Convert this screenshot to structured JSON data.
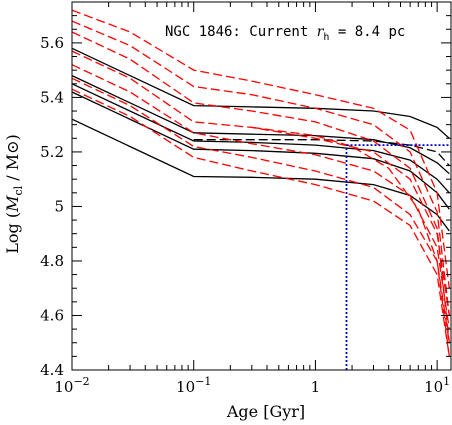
{
  "chart_data": {
    "type": "line",
    "title": "",
    "annotation": {
      "prefix": "NGC 1846: Current ",
      "symbol": "r",
      "subscript": "h",
      "suffix": " = 8.4 pc"
    },
    "xlabel": "Age [Gyr]",
    "ylabel": {
      "prefix": "Log (",
      "symbol": "M",
      "subscript": "cl",
      "suffix": " / M⊙)"
    },
    "xscale": "log",
    "xlim": [
      0.01,
      13
    ],
    "ylim": [
      4.4,
      5.75
    ],
    "x_ticks": [
      {
        "value": 0.01,
        "base": "10",
        "exp": "−2"
      },
      {
        "value": 0.1,
        "base": "10",
        "exp": "−1"
      },
      {
        "value": 1,
        "base": "1",
        "exp": ""
      },
      {
        "value": 10,
        "base": "10",
        "exp": "1"
      }
    ],
    "y_ticks": [
      {
        "value": 4.4,
        "label": "4.4"
      },
      {
        "value": 4.6,
        "label": "4.6"
      },
      {
        "value": 4.8,
        "label": "4.8"
      },
      {
        "value": 5.0,
        "label": "5"
      },
      {
        "value": 5.2,
        "label": "5.2"
      },
      {
        "value": 5.4,
        "label": "5.4"
      },
      {
        "value": 5.6,
        "label": "5.6"
      }
    ],
    "series": [
      {
        "style": "solid",
        "color": "#000000",
        "x": [
          0.01,
          0.1,
          0.3,
          1,
          3,
          6,
          10,
          12.6
        ],
        "y": [
          5.58,
          5.37,
          5.365,
          5.36,
          5.35,
          5.33,
          5.29,
          5.25
        ]
      },
      {
        "style": "solid",
        "color": "#000000",
        "x": [
          0.01,
          0.1,
          0.3,
          1,
          3,
          6,
          10,
          12.6
        ],
        "y": [
          5.48,
          5.27,
          5.265,
          5.26,
          5.245,
          5.215,
          5.16,
          5.12
        ]
      },
      {
        "style": "solid",
        "color": "#000000",
        "x": [
          0.01,
          0.1,
          0.3,
          1,
          3,
          6,
          10,
          12.6
        ],
        "y": [
          5.45,
          5.24,
          5.235,
          5.225,
          5.205,
          5.17,
          5.1,
          5.05
        ]
      },
      {
        "style": "solid",
        "color": "#000000",
        "x": [
          0.01,
          0.1,
          0.3,
          1,
          3,
          6,
          10,
          12.6
        ],
        "y": [
          5.42,
          5.21,
          5.205,
          5.195,
          5.175,
          5.13,
          5.05,
          4.99
        ]
      },
      {
        "style": "solid",
        "color": "#000000",
        "x": [
          0.01,
          0.1,
          0.3,
          1,
          3,
          6,
          10,
          12.6
        ],
        "y": [
          5.32,
          5.11,
          5.107,
          5.1,
          5.08,
          5.04,
          4.97,
          4.91
        ]
      },
      {
        "style": "dashed",
        "color": "#000000",
        "x": [
          0.1,
          0.3,
          1,
          3,
          6,
          10,
          12.6
        ],
        "y": [
          5.245,
          5.245,
          5.245,
          5.24,
          5.225,
          5.2,
          5.15
        ]
      },
      {
        "style": "dashed",
        "color": "#ff0000",
        "x": [
          0.01,
          0.03,
          0.1,
          0.3,
          1,
          3,
          6,
          10,
          12.6
        ],
        "y": [
          5.72,
          5.64,
          5.5,
          5.46,
          5.41,
          5.36,
          5.28,
          5.05,
          4.7
        ]
      },
      {
        "style": "dashed",
        "color": "#ff0000",
        "x": [
          0.01,
          0.03,
          0.1,
          0.3,
          1,
          3,
          6,
          10,
          12.6
        ],
        "y": [
          5.68,
          5.59,
          5.44,
          5.41,
          5.36,
          5.3,
          5.2,
          4.98,
          4.6
        ]
      },
      {
        "style": "dashed",
        "color": "#ff0000",
        "x": [
          0.01,
          0.03,
          0.1,
          0.3,
          1,
          3,
          6,
          10,
          12.6
        ],
        "y": [
          5.64,
          5.54,
          5.38,
          5.35,
          5.31,
          5.24,
          5.14,
          4.92,
          4.5
        ]
      },
      {
        "style": "dashed",
        "color": "#ff0000",
        "x": [
          0.01,
          0.03,
          0.1,
          0.3,
          1,
          3,
          6,
          10,
          12.6
        ],
        "y": [
          5.57,
          5.47,
          5.31,
          5.29,
          5.25,
          5.2,
          5.1,
          4.9,
          4.6
        ]
      },
      {
        "style": "dashed",
        "color": "#ff0000",
        "x": [
          0.01,
          0.03,
          0.1,
          0.3,
          1,
          3,
          6,
          10,
          12.6
        ],
        "y": [
          5.52,
          5.42,
          5.27,
          5.23,
          5.19,
          5.13,
          5.04,
          4.85,
          4.55
        ]
      },
      {
        "style": "dashed",
        "color": "#ff0000",
        "x": [
          0.01,
          0.03,
          0.1,
          0.3,
          1,
          3,
          6,
          10,
          12.6
        ],
        "y": [
          5.47,
          5.37,
          5.22,
          5.18,
          5.13,
          5.07,
          4.97,
          4.8,
          4.5
        ]
      },
      {
        "style": "dashed",
        "color": "#ff0000",
        "x": [
          0.01,
          0.03,
          0.1,
          0.3,
          1,
          3,
          6,
          10,
          12.6
        ],
        "y": [
          5.43,
          5.33,
          5.18,
          5.13,
          5.08,
          5.02,
          4.93,
          4.75,
          4.45
        ]
      },
      {
        "style": "dashed",
        "color": "#ff0000",
        "x": [
          0.3,
          1,
          2,
          4,
          7,
          10,
          12.6
        ],
        "y": [
          5.29,
          5.26,
          5.22,
          5.14,
          4.99,
          4.8,
          4.45
        ]
      }
    ],
    "reference_lines": [
      {
        "style": "dotted",
        "color": "#0000bb",
        "x": [
          1.8,
          1.8
        ],
        "y": [
          4.4,
          5.225
        ]
      },
      {
        "style": "dotted",
        "color": "#0000bb",
        "x": [
          1.8,
          13
        ],
        "y": [
          5.225,
          5.225
        ]
      }
    ],
    "grid": false,
    "legend": "none"
  }
}
